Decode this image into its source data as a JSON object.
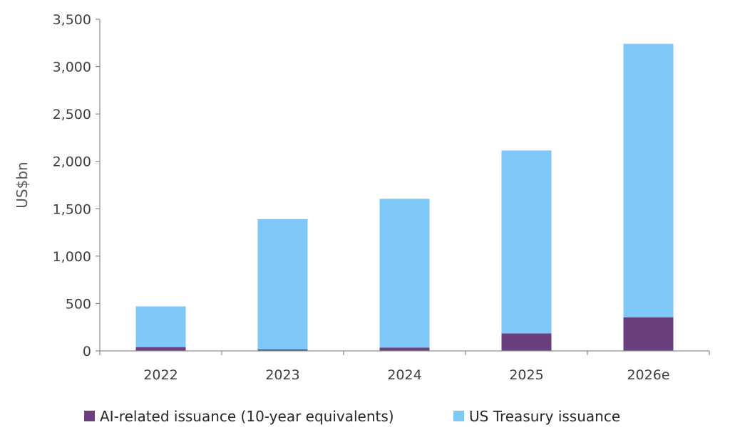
{
  "chart_data": {
    "type": "bar",
    "stacked": true,
    "categories": [
      "2022",
      "2023",
      "2024",
      "2025",
      "2026e"
    ],
    "series": [
      {
        "name": "AI-related issuance (10-year equivalents)",
        "color": "#6b3f7e",
        "values": [
          40,
          15,
          35,
          185,
          355
        ]
      },
      {
        "name": "US Treasury issuance",
        "color": "#7ec8f7",
        "values": [
          430,
          1375,
          1570,
          1930,
          2885
        ]
      }
    ],
    "ylabel": "US$bn",
    "ylim": [
      0,
      3500
    ],
    "yticks": [
      0,
      500,
      1000,
      1500,
      2000,
      2500,
      3000,
      3500
    ],
    "ytick_labels": [
      "0",
      "500",
      "1,000",
      "1,500",
      "2,000",
      "2,500",
      "3,000",
      "3,500"
    ],
    "grid": false,
    "legend_position": "bottom"
  }
}
